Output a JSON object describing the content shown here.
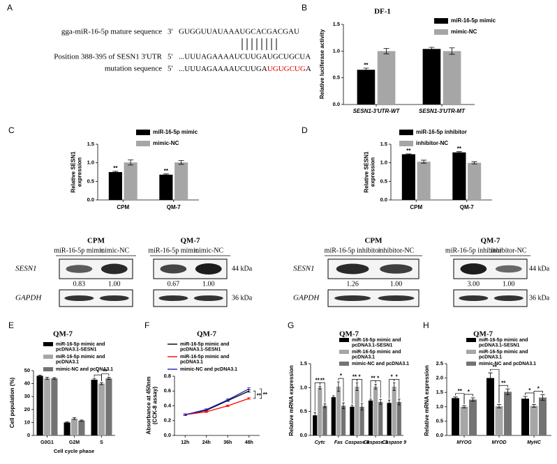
{
  "panel_a": {
    "label": "A",
    "rows": [
      {
        "name": "gga-miR-16-5p mature sequence",
        "end": "3'",
        "sequence": "GUGGUUAUAAAUGCACGACGAU"
      },
      {
        "name": "Position 388-395 of SESN1 3'UTR",
        "end": "5'",
        "sequence": "...UUUAGAAAAUCUUGAUGCUGCUA"
      },
      {
        "name": "mutation sequence",
        "end": "5'",
        "sequence": "...UUUAGAAAAUCUUGA",
        "mutated": "UGUGCUG",
        "tail": "A"
      }
    ]
  },
  "chart_data": [
    {
      "panel": "B",
      "type": "bar",
      "title": "DF-1",
      "y_label": "Relative luciferase activity",
      "categories": [
        "SESN1-3'UTR-WT",
        "SESN1-3'UTR-MT"
      ],
      "series": [
        {
          "name": "miR-16-5p mimic",
          "color": "#000000",
          "values": [
            0.65,
            1.04
          ],
          "errors": [
            0.03,
            0.03
          ]
        },
        {
          "name": "mimic-NC",
          "color": "#a6a6a6",
          "values": [
            1.0,
            1.0
          ],
          "errors": [
            0.05,
            0.06
          ]
        }
      ],
      "ylim": [
        0,
        1.5
      ],
      "yticks": [
        {
          "value": 0,
          "label": "0.0"
        },
        0.5,
        {
          "value": 1,
          "label": "1.0"
        },
        1.5
      ],
      "annotations": [
        "**"
      ]
    },
    {
      "panel": "C",
      "type": "bar",
      "y_label": "Relative SESN1 expression",
      "categories": [
        "CPM",
        "QM-7"
      ],
      "series": [
        {
          "name": "miR-16-5p mimic",
          "color": "#000000",
          "values": [
            0.75,
            0.68
          ],
          "errors": [
            0.02,
            0.02
          ]
        },
        {
          "name": "mimic-NC",
          "color": "#a6a6a6",
          "values": [
            1.01,
            1.01
          ],
          "errors": [
            0.07,
            0.05
          ]
        }
      ],
      "ylim": [
        0,
        1.5
      ],
      "yticks": [
        {
          "value": 0,
          "label": "0.0"
        },
        0.5,
        {
          "value": 1,
          "label": "1.0"
        },
        1.5
      ],
      "annotations": [
        "**",
        "**"
      ]
    },
    {
      "panel": "D",
      "type": "bar",
      "y_label": "Relative SESN1 expression",
      "categories": [
        "CPM",
        "QM-7"
      ],
      "series": [
        {
          "name": "miR-16-5p inhibitor",
          "color": "#000000",
          "values": [
            1.23,
            1.28
          ],
          "errors": [
            0.01,
            0.02
          ]
        },
        {
          "name": "inhibitor-NC",
          "color": "#a6a6a6",
          "values": [
            1.03,
            1.0
          ],
          "errors": [
            0.04,
            0.03
          ]
        }
      ],
      "ylim": [
        0,
        1.5
      ],
      "yticks": [
        {
          "value": 0,
          "label": "0.0"
        },
        0.5,
        {
          "value": 1,
          "label": "1.0"
        },
        1.5
      ],
      "annotations": [
        "**",
        "**"
      ]
    },
    {
      "panel": "E",
      "type": "bar",
      "title": "QM-7",
      "y_label": "Cell population (%)",
      "x_label": "Cell cycle phase",
      "categories": [
        "G0G1",
        "G2M",
        "S"
      ],
      "series": [
        {
          "name": "miR-16-5p mimic and pcDNA3.1-SESN1",
          "color": "#000000",
          "values": [
            46,
            10,
            43
          ],
          "errors": [
            0.5,
            0.5,
            1
          ]
        },
        {
          "name": "miR-16-5p mimic and pcDNA3.1",
          "color": "#a6a6a6",
          "values": [
            44,
            13,
            40
          ],
          "errors": [
            0.8,
            0.7,
            0.8
          ]
        },
        {
          "name": "mimic-NC and pcDNA3.1",
          "color": "#737373",
          "values": [
            44,
            11.5,
            44
          ],
          "errors": [
            0.6,
            0.4,
            0.8
          ]
        }
      ],
      "ylim": [
        0,
        50
      ],
      "yticks": [
        0,
        10,
        20,
        30,
        40,
        50
      ],
      "annotations": [
        "*",
        "**"
      ]
    },
    {
      "panel": "F",
      "type": "line",
      "title": "QM-7",
      "y_label": "Absorbance at 450nm (CCK-8 assay)",
      "categories": [
        "12h",
        "24h",
        "36h",
        "48h"
      ],
      "series": [
        {
          "name": "miR-16-5p mimic and pcDNA3.1-SESN1",
          "color": "#000000",
          "values": [
            0.28,
            0.34,
            0.47,
            0.6
          ],
          "errors": [
            0.01,
            0.01,
            0.01,
            0.015
          ]
        },
        {
          "name": "miR-16-5p mimic and pcDNA3.1",
          "color": "#ff0000",
          "values": [
            0.28,
            0.32,
            0.4,
            0.5
          ],
          "errors": [
            0.01,
            0.01,
            0.01,
            0.01
          ]
        },
        {
          "name": "mimic-NC and pcDNA3.1",
          "color": "#1f1fbf",
          "values": [
            0.28,
            0.35,
            0.48,
            0.63
          ],
          "errors": [
            0.01,
            0.01,
            0.015,
            0.015
          ]
        }
      ],
      "ylim": [
        0,
        0.8
      ],
      "yticks": [
        {
          "value": 0,
          "label": "0.0"
        },
        0.2,
        0.4,
        0.6,
        0.8
      ],
      "annotations": [
        "**",
        "**"
      ]
    },
    {
      "panel": "G",
      "type": "bar",
      "title": "QM-7",
      "y_label": "Relative mRNA expression",
      "categories": [
        "Cytc",
        "Fas",
        "Caspase 8",
        "Caspase 3",
        "Caspase 9"
      ],
      "series": [
        {
          "name": "miR-16-5p mimic and pcDNA3.1-SESN1",
          "color": "#000000",
          "values": [
            0.42,
            0.8,
            0.6,
            0.73,
            0.68
          ],
          "errors": [
            0.06,
            0.03,
            0.03,
            0.03,
            0.06
          ]
        },
        {
          "name": "miR-16-5p mimic and pcDNA3.1",
          "color": "#a6a6a6",
          "values": [
            1.0,
            1.02,
            1.02,
            1.02,
            1.02
          ],
          "errors": [
            0.03,
            0.1,
            0.08,
            0.05,
            0.08
          ]
        },
        {
          "name": "mimic-NC and pcDNA3.1",
          "color": "#737373",
          "values": [
            0.62,
            0.62,
            0.6,
            0.7,
            0.7
          ],
          "errors": [
            0.04,
            0.06,
            0.07,
            0.05,
            0.06
          ]
        }
      ],
      "ylim": [
        0,
        1.5
      ],
      "yticks": [
        {
          "value": 0,
          "label": "0.0"
        },
        0.5,
        {
          "value": 1,
          "label": "1.0"
        },
        1.5
      ],
      "annotations": [
        "**",
        "**",
        "*",
        "**",
        "*",
        "**",
        "*",
        "*",
        "*"
      ]
    },
    {
      "panel": "H",
      "type": "bar",
      "title": "QM-7",
      "y_label": "Relative mRNA expression",
      "categories": [
        "MYOG",
        "MYOD",
        "MyHC"
      ],
      "series": [
        {
          "name": "miR-16-5p mimic and pcDNA3.1-SESN1",
          "color": "#000000",
          "values": [
            1.3,
            2.0,
            1.28
          ],
          "errors": [
            0.04,
            0.18,
            0.08
          ]
        },
        {
          "name": "miR-16-5p mimic and pcDNA3.1",
          "color": "#a6a6a6",
          "values": [
            1.0,
            1.02,
            1.03
          ],
          "errors": [
            0.04,
            0.06,
            0.05
          ]
        },
        {
          "name": "mimic-NC and pcDNA3.1",
          "color": "#737373",
          "values": [
            1.25,
            1.52,
            1.32
          ],
          "errors": [
            0.06,
            0.1,
            0.1
          ]
        }
      ],
      "ylim": [
        0,
        2.5
      ],
      "yticks": [
        {
          "value": 0,
          "label": "0.0"
        },
        0.5,
        {
          "value": 1,
          "label": "1.0"
        },
        1.5,
        {
          "value": 2,
          "label": "2.0"
        },
        2.5
      ],
      "annotations": [
        "**",
        "*",
        "**",
        "**",
        "*",
        "*"
      ]
    }
  ],
  "blots": [
    {
      "rows": [
        "SESN1",
        "GAPDH"
      ],
      "sizes": [
        "44 kDa",
        "36 kDa"
      ],
      "groups": [
        {
          "cell": "CPM",
          "lanes": [
            "miR-16-5p mimic",
            "mimic-NC"
          ],
          "quantification": [
            "0.83",
            "1.00"
          ]
        },
        {
          "cell": "QM-7",
          "lanes": [
            "miR-16-5p mimic",
            "mimic-NC"
          ],
          "quantification": [
            "0.67",
            "1.00"
          ]
        }
      ]
    },
    {
      "rows": [
        "SESN1",
        "GAPDH"
      ],
      "sizes": [
        "44 kDa",
        "36 kDa"
      ],
      "groups": [
        {
          "cell": "CPM",
          "lanes": [
            "miR-16-5p inhibitor",
            "inhibitor-NC"
          ],
          "quantification": [
            "1.26",
            "1.00"
          ]
        },
        {
          "cell": "QM-7",
          "lanes": [
            "miR-16-5p inhibitor",
            "inhibitor-NC"
          ],
          "quantification": [
            "3.00",
            "1.00"
          ]
        }
      ]
    }
  ]
}
